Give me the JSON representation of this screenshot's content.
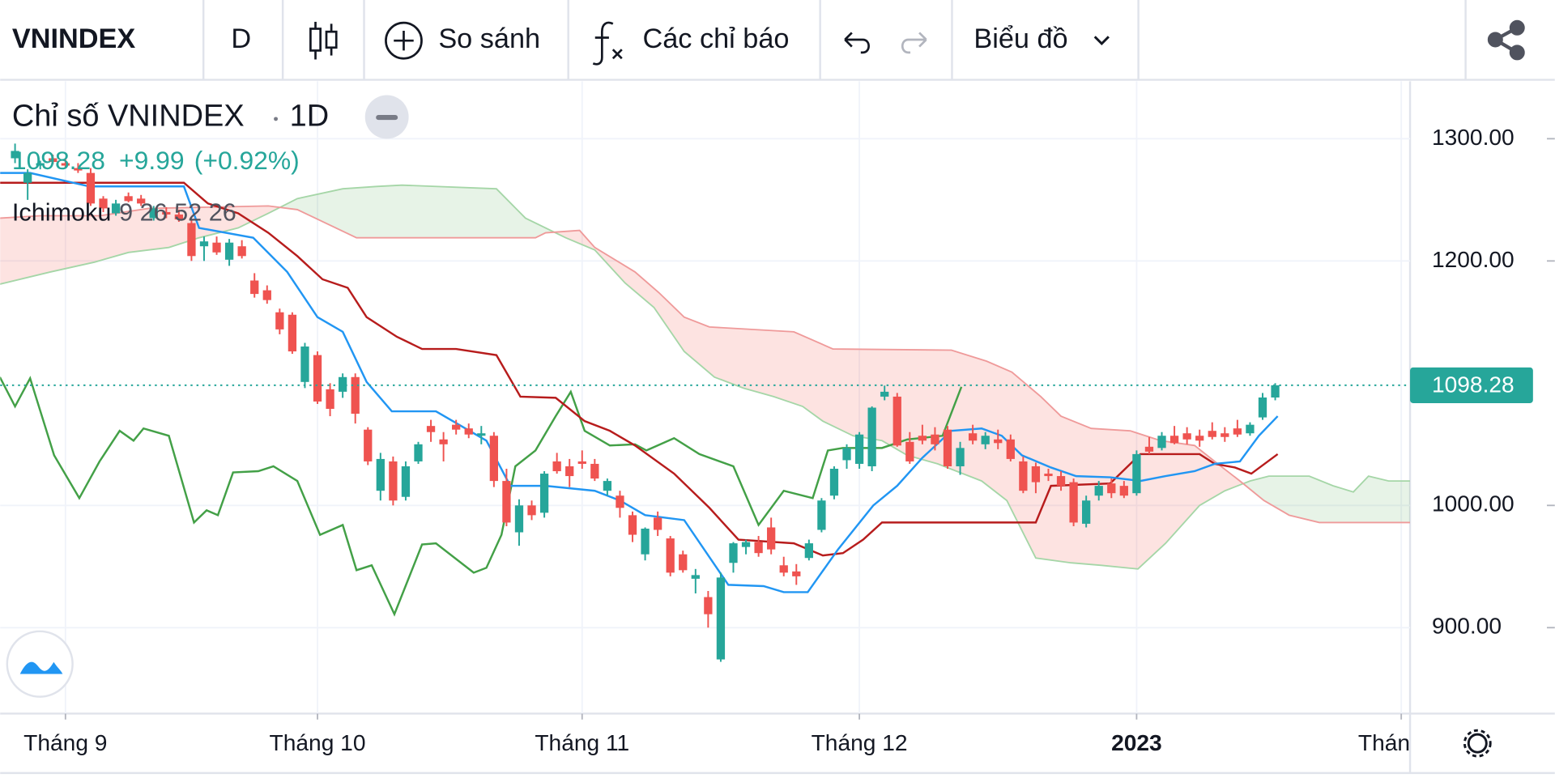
{
  "toolbar": {
    "symbol": "VNINDEX",
    "interval": "D",
    "compare": "So sánh",
    "indicators": "Các chỉ báo",
    "chart_style": "Biểu đồ"
  },
  "chart_data": {
    "type": "candlestick",
    "title": "Chỉ số VNINDEX",
    "interval": "1D",
    "change": "+9.99",
    "change_percent": "(+0.92%)",
    "x": [
      0,
      1,
      2,
      3,
      4,
      5,
      6,
      7,
      8,
      9,
      10,
      11,
      12,
      13,
      14,
      15,
      16,
      17,
      18,
      19,
      20,
      21,
      22,
      23,
      24,
      25,
      26,
      27,
      28,
      29,
      30,
      31,
      32,
      33,
      34,
      35,
      36,
      37,
      38,
      39,
      40,
      41,
      42,
      43,
      44,
      45,
      46,
      47,
      48,
      49,
      50,
      51,
      52,
      53,
      54,
      55,
      56,
      57,
      58,
      59,
      60,
      61,
      62,
      63,
      64,
      65,
      66,
      67,
      68,
      69,
      70,
      71,
      72,
      73,
      74,
      75,
      76,
      77,
      78,
      79,
      80,
      81,
      82,
      83,
      84,
      85,
      86,
      87,
      88,
      89,
      90,
      91,
      92,
      93,
      94,
      95,
      96,
      97,
      98,
      99,
      100
    ],
    "open": [
      1284,
      1264,
      1278,
      1284,
      1280,
      1276,
      1272,
      1251,
      1239,
      1253,
      1251,
      1235,
      1240,
      1238,
      1231,
      1212,
      1215,
      1201,
      1212,
      1184,
      1176,
      1158,
      1156,
      1101,
      1123,
      1095,
      1093,
      1105,
      1062,
      1012,
      1036,
      1007,
      1036,
      1065,
      1054,
      1066,
      1063,
      1057,
      1057,
      1020,
      978,
      1000,
      994,
      1036,
      1032,
      1036,
      1034,
      1012,
      1008,
      992,
      960,
      990,
      973,
      960,
      940,
      925,
      874,
      953,
      966,
      970,
      982,
      951,
      946,
      957,
      980,
      1008,
      1037,
      1034,
      1032,
      1089,
      1089,
      1052,
      1057,
      1058,
      1062,
      1032,
      1059,
      1050,
      1054,
      1054,
      1036,
      1032,
      1026,
      1024,
      1019,
      985,
      1008,
      1018,
      1016,
      1010,
      1048,
      1047,
      1057,
      1059,
      1057,
      1061,
      1059,
      1063,
      1059,
      1072,
      1088.29
    ],
    "high": [
      1296,
      1275,
      1282,
      1287,
      1283,
      1280,
      1276,
      1253,
      1250,
      1256,
      1254,
      1245,
      1244,
      1242,
      1234,
      1220,
      1220,
      1218,
      1217,
      1190,
      1180,
      1161,
      1158,
      1133,
      1126,
      1100,
      1108,
      1108,
      1064,
      1043,
      1040,
      1036,
      1052,
      1070,
      1060,
      1070,
      1067,
      1065,
      1060,
      1030,
      1005,
      1004,
      1028,
      1043,
      1038,
      1045,
      1038,
      1022,
      1012,
      995,
      982,
      995,
      975,
      963,
      948,
      930,
      945,
      970,
      972,
      975,
      990,
      958,
      952,
      972,
      1006,
      1032,
      1050,
      1060,
      1081,
      1098,
      1092,
      1060,
      1066,
      1064,
      1065,
      1052,
      1066,
      1060,
      1062,
      1058,
      1040,
      1035,
      1030,
      1028,
      1022,
      1008,
      1020,
      1022,
      1020,
      1045,
      1056,
      1060,
      1065,
      1064,
      1062,
      1068,
      1064,
      1070,
      1068,
      1092,
      1100
    ],
    "low": [
      1280,
      1250,
      1275,
      1279,
      1276,
      1272,
      1245,
      1240,
      1237,
      1248,
      1245,
      1233,
      1235,
      1232,
      1200,
      1200,
      1205,
      1196,
      1202,
      1170,
      1165,
      1140,
      1124,
      1096,
      1083,
      1073,
      1088,
      1067,
      1033,
      1004,
      1000,
      1004,
      1034,
      1052,
      1036,
      1058,
      1055,
      1050,
      1015,
      983,
      967,
      988,
      990,
      1026,
      1015,
      1030,
      1020,
      1008,
      990,
      970,
      955,
      975,
      942,
      945,
      928,
      900,
      872,
      945,
      960,
      958,
      960,
      942,
      935,
      955,
      978,
      1005,
      1030,
      1030,
      1028,
      1086,
      1048,
      1034,
      1050,
      1045,
      1030,
      1025,
      1050,
      1046,
      1046,
      1036,
      1010,
      1010,
      1020,
      1012,
      983,
      982,
      1004,
      1006,
      1006,
      1008,
      1042,
      1045,
      1050,
      1050,
      1048,
      1054,
      1052,
      1056,
      1057,
      1070,
      1086
    ],
    "close": [
      1290,
      1272,
      1280,
      1281,
      1278,
      1274,
      1247,
      1243,
      1247,
      1249,
      1247,
      1243,
      1238,
      1234,
      1204,
      1216,
      1207,
      1215,
      1204,
      1173,
      1168,
      1144,
      1126,
      1130,
      1085,
      1079,
      1105,
      1075,
      1036,
      1038,
      1004,
      1032,
      1050,
      1060,
      1050,
      1062,
      1058,
      1059,
      1020,
      986,
      1000,
      992,
      1026,
      1028,
      1024,
      1034,
      1022,
      1020,
      998,
      976,
      981,
      980,
      945,
      947,
      943,
      911,
      941,
      969,
      970,
      961,
      964,
      945,
      942,
      969,
      1004,
      1030,
      1047,
      1058,
      1080,
      1093,
      1049,
      1036,
      1053,
      1050,
      1032,
      1047,
      1053,
      1057,
      1051,
      1038,
      1012,
      1019,
      1024,
      1016,
      986,
      1004,
      1016,
      1010,
      1008,
      1042,
      1044,
      1057,
      1051,
      1054,
      1053,
      1056,
      1056,
      1058,
      1066,
      1088.29,
      1098.28
    ],
    "up_color": "#26a69a",
    "down_color": "#ef5350",
    "indicator": {
      "name": "Ichimoku",
      "params": "9 26 52 26",
      "conversion": {
        "color": "#2196f3",
        "x": [
          -1.2,
          1.2,
          5.9,
          13.4,
          14.6,
          18.9,
          21.6,
          24.0,
          26.0,
          27.9,
          29.9,
          33.4,
          37.4,
          39.3,
          42.1,
          46.0,
          48.0,
          50.0,
          53.1,
          56.6,
          59.4,
          61.0,
          62.9,
          65.3,
          68.1,
          70.0,
          72.0,
          74.3,
          76.7,
          78.3,
          79.9,
          82.2,
          84.2,
          86.9,
          89.3,
          91.3,
          93.6,
          95.2,
          97.2,
          98.7,
          100.2
        ],
        "values": [
          1272,
          1272,
          1261,
          1261,
          1227,
          1219,
          1191,
          1154,
          1142,
          1101,
          1077,
          1077,
          1053,
          1016,
          1016,
          1012,
          1004,
          992,
          988,
          935,
          934,
          929,
          929,
          964,
          1000,
          1016,
          1039,
          1061,
          1063,
          1057,
          1041,
          1031,
          1024,
          1023,
          1020,
          1024,
          1028,
          1034,
          1036,
          1057,
          1073
        ]
      },
      "base": {
        "color": "#b71c1c",
        "x": [
          -1.2,
          13.4,
          15.3,
          17.7,
          20.1,
          22.4,
          24.4,
          26.4,
          27.9,
          30.3,
          32.3,
          35.0,
          38.2,
          40.1,
          42.9,
          45.2,
          47.2,
          49.2,
          52.3,
          55.1,
          57.4,
          61.8,
          64.1,
          65.7,
          67.3,
          68.8,
          81.0,
          82.2,
          86.9,
          89.3,
          94.0,
          95.2,
          96.8,
          98.1,
          100.2
        ],
        "values": [
          1264,
          1264,
          1247,
          1239,
          1223,
          1204,
          1185,
          1178,
          1154,
          1138,
          1128,
          1128,
          1123,
          1089,
          1088,
          1069,
          1061,
          1049,
          1026,
          998,
          972,
          969,
          959,
          961,
          972,
          986,
          986,
          1016,
          1018,
          1042,
          1042,
          1034,
          1031,
          1026,
          1042
        ]
      },
      "lagging": {
        "color": "#43a047",
        "x": [
          -1.2,
          0,
          1.2,
          3.1,
          5.1,
          6.7,
          8.3,
          9.4,
          10.2,
          12.2,
          14.2,
          15.2,
          16.1,
          17.3,
          19.3,
          20.5,
          22.4,
          24.2,
          26.0,
          27.1,
          28.3,
          30.1,
          32.3,
          33.4,
          36.4,
          37.4,
          38.6,
          39.7,
          41.3,
          42.9,
          44.1,
          45.2,
          47.2,
          49.2,
          50.1,
          52.3,
          54.3,
          57.0,
          59.0,
          61.0,
          63.3,
          64.5,
          65.7,
          68.8,
          70.8,
          73.6,
          75.1
        ],
        "values": [
          1105,
          1081,
          1104,
          1041,
          1006,
          1036,
          1061,
          1053,
          1063,
          1057,
          986,
          996,
          992,
          1027,
          1028,
          1032,
          1020,
          976,
          984,
          947,
          951,
          911,
          968,
          969,
          945,
          949,
          976,
          1032,
          1045,
          1073,
          1093,
          1061,
          1049,
          1050,
          1045,
          1055,
          1042,
          1032,
          984,
          1012,
          1006,
          1045,
          1047,
          1047,
          1054,
          1057,
          1097
        ]
      },
      "span_a": {
        "color": "#a5d6a7",
        "x": [
          -1.2,
          2.8,
          6.3,
          9.0,
          12.2,
          14.6,
          17.7,
          20.1,
          22.4,
          26.0,
          28.7,
          30.7,
          38.2,
          40.5,
          43.7,
          46.0,
          48.4,
          50.7,
          53.1,
          55.5,
          57.8,
          60.2,
          62.5,
          64.1,
          66.5,
          68.8,
          70.8,
          73.2,
          76.7,
          78.7,
          81.0,
          83.8,
          86.2,
          89.1,
          91.3,
          94.0,
          96.0,
          98.0,
          99.5,
          102.7,
          104.6,
          106.2,
          107.4,
          109.0,
          110.7
        ],
        "values": [
          1181,
          1191,
          1199,
          1207,
          1211,
          1219,
          1227,
          1239,
          1251,
          1259,
          1261,
          1262,
          1259,
          1235,
          1219,
          1209,
          1182,
          1162,
          1126,
          1105,
          1096,
          1089,
          1081,
          1069,
          1057,
          1053,
          1041,
          1034,
          1020,
          1004,
          957,
          953,
          951,
          948,
          969,
          1000,
          1012,
          1020,
          1024,
          1024,
          1016,
          1011,
          1024,
          1020,
          1020
        ]
      },
      "span_b": {
        "color": "#ef9a9a",
        "x": [
          -1.2,
          2.0,
          6.7,
          10.6,
          20.1,
          22.4,
          27.1,
          41.3,
          42.1,
          44.8,
          46.0,
          49.2,
          51.1,
          53.1,
          55.1,
          61.8,
          64.9,
          74.3,
          77.1,
          79.1,
          81.4,
          83.0,
          85.4,
          88.5,
          90.9,
          93.6,
          95.2,
          97.2,
          99.1,
          101.1,
          103.5,
          110.7
        ],
        "values": [
          1235,
          1237,
          1237,
          1243,
          1245,
          1242,
          1219,
          1219,
          1223,
          1225,
          1211,
          1191,
          1174,
          1154,
          1146,
          1142,
          1128,
          1127,
          1118,
          1109,
          1089,
          1073,
          1063,
          1061,
          1053,
          1049,
          1036,
          1020,
          1004,
          992,
          986,
          986
        ]
      },
      "cloud_up_color": "rgba(67,160,71,0.13)",
      "cloud_down_color": "rgba(244,67,54,0.15)"
    },
    "xlim": [
      -1.18,
      110.7
    ],
    "ylim": [
      829.7,
      1347
    ],
    "xticks": [
      {
        "value": 4,
        "label": "Tháng 9"
      },
      {
        "value": 24,
        "label": "Tháng 10"
      },
      {
        "value": 45,
        "label": "Tháng 11"
      },
      {
        "value": 67,
        "label": "Tháng 12"
      },
      {
        "value": 89,
        "label": "2023"
      },
      {
        "value": 110,
        "label": "Thán"
      }
    ],
    "yticks": [
      {
        "value": 900,
        "label": "900.00"
      },
      {
        "value": 1000,
        "label": "1000.00"
      },
      {
        "value": 1200,
        "label": "1200.00"
      },
      {
        "value": 1300,
        "label": "1300.00"
      }
    ],
    "grid": true
  }
}
